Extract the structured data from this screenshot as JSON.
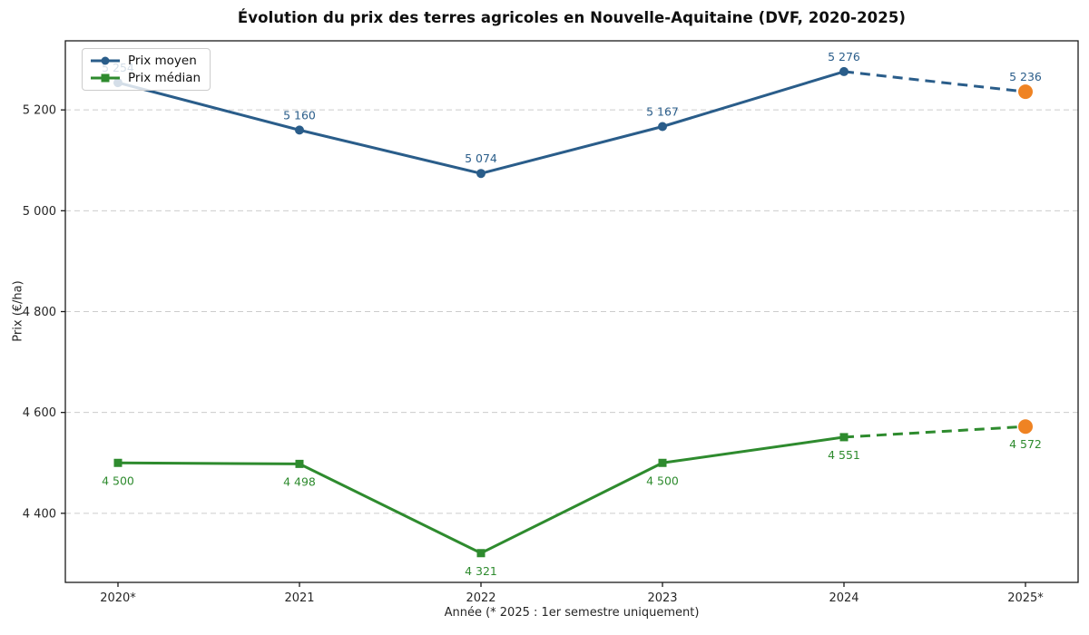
{
  "chart_data": {
    "type": "line",
    "title": "Évolution du prix des terres agricoles en Nouvelle-Aquitaine (DVF, 2020-2025)",
    "xlabel": "Année (* 2025 : 1er semestre uniquement)",
    "ylabel": "Prix (€/ha)",
    "categories": [
      "2020*",
      "2021",
      "2022",
      "2023",
      "2024",
      "2025*"
    ],
    "series": [
      {
        "name": "Prix moyen",
        "values": [
          5254,
          5160,
          5074,
          5167,
          5276,
          5236
        ],
        "labels": [
          "5 254",
          "5 160",
          "5 074",
          "5 167",
          "5 276",
          "5 236"
        ],
        "color": "#2a5d8a",
        "marker": "circle",
        "label_position": "above"
      },
      {
        "name": "Prix médian",
        "values": [
          4500,
          4498,
          4321,
          4500,
          4551,
          4572
        ],
        "labels": [
          "4 500",
          "4 498",
          "4 321",
          "4 500",
          "4 551",
          "4 572"
        ],
        "color": "#2e8b2e",
        "marker": "square",
        "label_position": "below"
      }
    ],
    "last_segment_dashed": true,
    "last_point_color": "#ef8323",
    "yticks": [
      4400,
      4600,
      4800,
      5000,
      5200
    ],
    "ytick_labels": [
      "4 400",
      "4 600",
      "4 800",
      "5 000",
      "5 200"
    ],
    "ylim": [
      4263,
      5337
    ],
    "grid": "horizontal-dashed",
    "grid_color": "#cccccc",
    "spine_color": "#1a1a1a",
    "legend_position": "top-left"
  }
}
